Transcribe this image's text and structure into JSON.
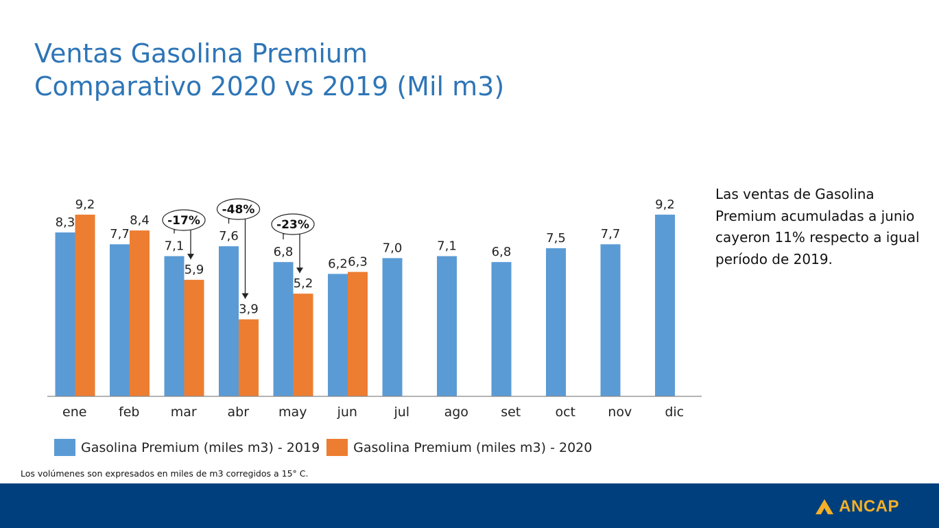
{
  "title": {
    "line1": "Ventas Gasolina Premium",
    "line2": "Comparativo 2020 vs 2019 (Mil m3)"
  },
  "note": "Las ventas de Gasolina Premium acumuladas a junio cayeron 11% respecto a igual período de 2019.",
  "footnote": "Los volúmenes son expresados en miles de m3 corregidos a 15° C.",
  "brand": "ANCAP",
  "colors": {
    "series2019": "#5b9bd5",
    "series2020": "#ed7d31",
    "title": "#2e75b6",
    "footer": "#003f7d",
    "brand": "#f5b027"
  },
  "chart_data": {
    "type": "bar",
    "categories": [
      "ene",
      "feb",
      "mar",
      "abr",
      "may",
      "jun",
      "jul",
      "ago",
      "set",
      "oct",
      "nov",
      "dic"
    ],
    "series": [
      {
        "name": "Gasolina Premium (miles m3) - 2019",
        "values": [
          8.3,
          7.7,
          7.1,
          7.6,
          6.8,
          6.2,
          7.0,
          7.1,
          6.8,
          7.5,
          7.7,
          9.2
        ],
        "labels": [
          "8,3",
          "7,7",
          "7,1",
          "7,6",
          "6,8",
          "6,2",
          "7,0",
          "7,1",
          "6,8",
          "7,5",
          "7,7",
          "9,2"
        ]
      },
      {
        "name": "Gasolina Premium (miles m3) - 2020",
        "values": [
          9.2,
          8.4,
          5.9,
          3.9,
          5.2,
          6.3,
          null,
          null,
          null,
          null,
          null,
          null
        ],
        "labels": [
          "9,2",
          "8,4",
          "5,9",
          "3,9",
          "5,2",
          "6,3",
          "",
          "",
          "",
          "",
          "",
          ""
        ]
      }
    ],
    "annotations": [
      {
        "category": "mar",
        "text": "-17%"
      },
      {
        "category": "abr",
        "text": "-48%"
      },
      {
        "category": "may",
        "text": "-23%"
      }
    ],
    "ylim": [
      0,
      10
    ],
    "grid": false,
    "legend": "bottom"
  }
}
